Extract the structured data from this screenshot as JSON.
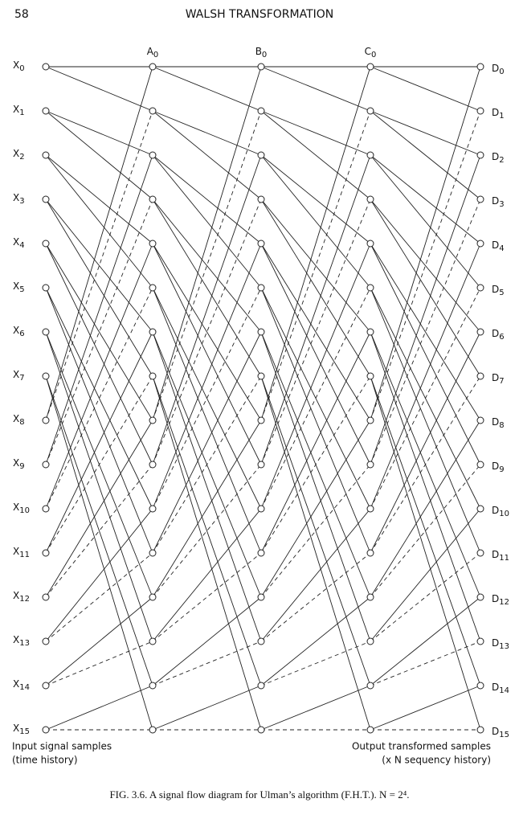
{
  "header": {
    "page_number": "58",
    "title": "WALSH TRANSFORMATION"
  },
  "diagram": {
    "inputs": [
      "X0",
      "X1",
      "X2",
      "X3",
      "X4",
      "X5",
      "X6",
      "X7",
      "X8",
      "X9",
      "X10",
      "X11",
      "X12",
      "X13",
      "X14",
      "X15"
    ],
    "stage_labels": [
      "A0",
      "B0",
      "C0"
    ],
    "outputs": [
      "D0",
      "D1",
      "D2",
      "D3",
      "D4",
      "D5",
      "D6",
      "D7",
      "D8",
      "D9",
      "D10",
      "D11",
      "D12",
      "D13",
      "D14",
      "D15"
    ],
    "input_caption": [
      "Input signal samples",
      "(time history)"
    ],
    "output_caption": [
      "Output transformed samples",
      "(x N sequency history)"
    ]
  },
  "caption": "FIG. 3.6. A signal flow diagram for Ulman’s algorithm (F.H.T.). N = 2⁴."
}
